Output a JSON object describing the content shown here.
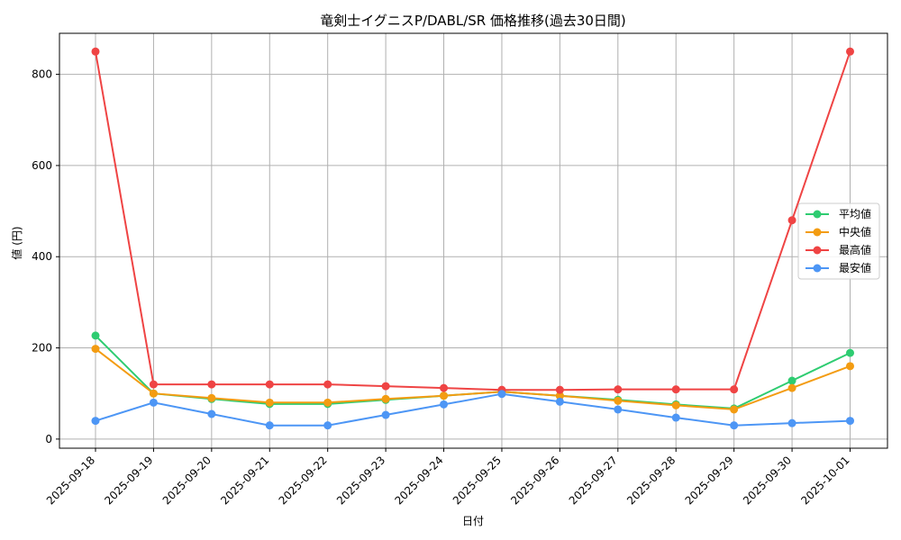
{
  "chart_data": {
    "type": "line",
    "title": "竜剣士イグニスP/DABL/SR 価格推移(過去30日間)",
    "xlabel": "日付",
    "ylabel": "値 (円)",
    "categories": [
      "2025-09-18",
      "2025-09-19",
      "2025-09-20",
      "2025-09-21",
      "2025-09-22",
      "2025-09-23",
      "2025-09-24",
      "2025-09-25",
      "2025-09-26",
      "2025-09-27",
      "2025-09-28",
      "2025-09-29",
      "2025-09-30",
      "2025-10-01"
    ],
    "ylim": [
      -20,
      890
    ],
    "yticks": [
      0,
      200,
      400,
      600,
      800
    ],
    "grid": true,
    "legend_position": "center-right",
    "series": [
      {
        "name": "平均値",
        "color": "#2ecc71",
        "values": [
          227,
          100,
          88,
          77,
          77,
          86,
          95,
          104,
          95,
          86,
          76,
          67,
          128,
          189
        ]
      },
      {
        "name": "中央値",
        "color": "#f39c12",
        "values": [
          198,
          100,
          90,
          80,
          80,
          88,
          95,
          104,
          95,
          84,
          74,
          65,
          112,
          160
        ]
      },
      {
        "name": "最高値",
        "color": "#ef4444",
        "values": [
          850,
          120,
          120,
          120,
          120,
          116,
          112,
          108,
          108,
          109,
          109,
          109,
          480,
          850
        ]
      },
      {
        "name": "最安値",
        "color": "#4d96f5",
        "values": [
          40,
          80,
          55,
          30,
          30,
          53,
          76,
          99,
          82,
          65,
          47,
          30,
          35,
          40
        ]
      }
    ]
  }
}
